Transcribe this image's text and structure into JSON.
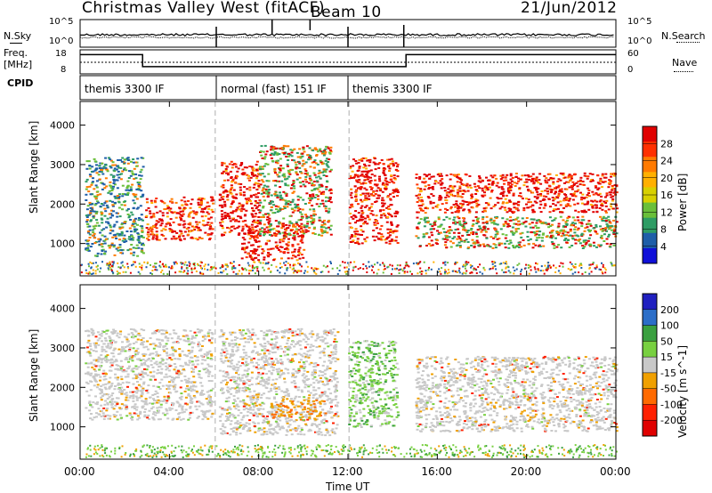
{
  "header": {
    "title": "Christmas Valley West (fitACF)",
    "beam": "Beam 10",
    "date": "21/Jun/2012"
  },
  "panels": {
    "nsky_label": "N.Sky",
    "nsearch_label": "N.Search",
    "freq_label_top": "Freq.",
    "freq_label_unit": "[MHz]",
    "nave_label": "Nave",
    "cpid_label": "CPID",
    "nsky_ticks": [
      "10^5",
      "10^0"
    ],
    "nsearch_ticks": [
      "10^5",
      "10^0"
    ],
    "freq_ticks": [
      "18",
      "8"
    ],
    "nave_ticks": [
      "60",
      "0"
    ],
    "cpid_segments": [
      {
        "label": "themis 3300 IF",
        "start_hour": 0.0,
        "end_hour": 6.1
      },
      {
        "label": "normal (fast) 151 IF",
        "start_hour": 6.1,
        "end_hour": 12.0
      },
      {
        "label": "themis 3300 IF",
        "start_hour": 12.0,
        "end_hour": 24.0
      }
    ],
    "freq_steps": [
      {
        "start_hour": 0.0,
        "end_hour": 2.8,
        "mhz": 16
      },
      {
        "start_hour": 2.8,
        "end_hour": 14.6,
        "mhz": 11
      },
      {
        "start_hour": 14.6,
        "end_hour": 24.0,
        "mhz": 16
      }
    ]
  },
  "chart_data": [
    {
      "type": "heatmap",
      "name": "power",
      "ylabel": "Slant Range [km]",
      "yticks": [
        "4000",
        "3000",
        "2000",
        "1000"
      ],
      "ylim": [
        180,
        4600
      ],
      "xlim": [
        0,
        24
      ],
      "colorbar": {
        "label": "Power [dB]",
        "ticks": [
          "28",
          "24",
          "20",
          "16",
          "12",
          "8",
          "4"
        ],
        "colors": [
          "#e00000",
          "#ff3000",
          "#ff7a00",
          "#ffb000",
          "#d8d000",
          "#6abf3a",
          "#2e9c64",
          "#1e5ea8",
          "#1010d8"
        ]
      },
      "features": [
        {
          "start_hour": 0.2,
          "end_hour": 2.8,
          "range_min": 700,
          "range_max": 3200,
          "level": "low"
        },
        {
          "start_hour": 2.9,
          "end_hour": 5.9,
          "range_min": 1100,
          "range_max": 2200,
          "level": "high"
        },
        {
          "start_hour": 6.2,
          "end_hour": 8.0,
          "range_min": 1200,
          "range_max": 3100,
          "level": "high"
        },
        {
          "start_hour": 7.2,
          "end_hour": 10.0,
          "range_min": 600,
          "range_max": 1500,
          "level": "high"
        },
        {
          "start_hour": 8.0,
          "end_hour": 11.2,
          "range_min": 1200,
          "range_max": 3500,
          "level": "mid"
        },
        {
          "start_hour": 12.0,
          "end_hour": 14.2,
          "range_min": 1000,
          "range_max": 3200,
          "level": "high"
        },
        {
          "start_hour": 15.0,
          "end_hour": 24.0,
          "range_min": 1800,
          "range_max": 2800,
          "level": "high"
        },
        {
          "start_hour": 15.0,
          "end_hour": 24.0,
          "range_min": 900,
          "range_max": 1700,
          "level": "mid"
        }
      ]
    },
    {
      "type": "heatmap",
      "name": "velocity",
      "ylabel": "Slant Range [km]",
      "xlabel": "Time UT",
      "yticks": [
        "4000",
        "3000",
        "2000",
        "1000"
      ],
      "ylim": [
        180,
        4600
      ],
      "xlim": [
        0,
        24
      ],
      "xticks": [
        "00:00",
        "04:00",
        "08:00",
        "12:00",
        "16:00",
        "20:00",
        "00:00"
      ],
      "colorbar": {
        "label": "Velocity [m s^-1]",
        "ticks": [
          "200",
          "100",
          "50",
          "15",
          "-15",
          "-50",
          "-100",
          "-200"
        ],
        "colors": [
          "#2020c0",
          "#2c6ec8",
          "#3aa040",
          "#78d040",
          "#c8c8c8",
          "#f0a000",
          "#ff6a00",
          "#ff2000",
          "#e00000"
        ]
      },
      "features": [
        {
          "start_hour": 0.2,
          "end_hour": 5.9,
          "range_min": 1200,
          "range_max": 3500,
          "level": "ground"
        },
        {
          "start_hour": 6.2,
          "end_hour": 11.5,
          "range_min": 800,
          "range_max": 3500,
          "level": "ground"
        },
        {
          "start_hour": 8.5,
          "end_hour": 11.0,
          "range_min": 1200,
          "range_max": 1700,
          "level": "negative"
        },
        {
          "start_hour": 12.0,
          "end_hour": 14.2,
          "range_min": 1000,
          "range_max": 3200,
          "level": "positive"
        },
        {
          "start_hour": 15.0,
          "end_hour": 24.0,
          "range_min": 900,
          "range_max": 2800,
          "level": "ground"
        }
      ]
    }
  ]
}
